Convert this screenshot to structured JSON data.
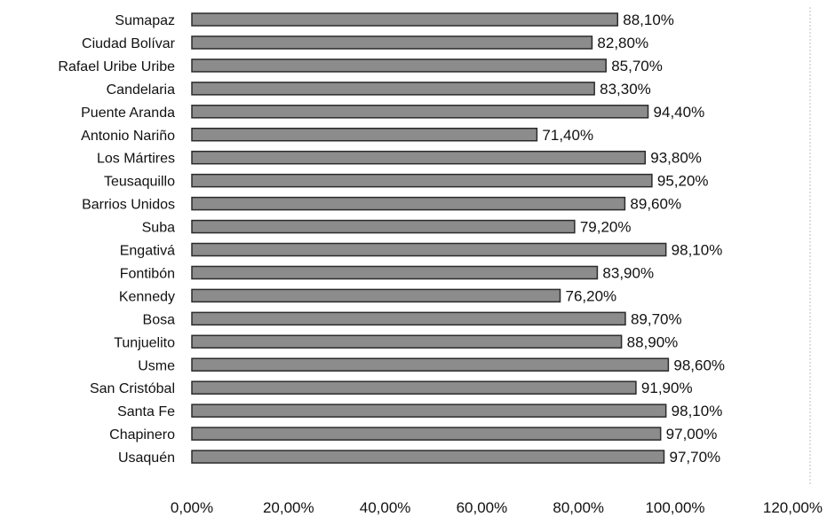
{
  "chart_data": {
    "type": "bar",
    "orientation": "horizontal",
    "categories": [
      "Sumapaz",
      "Ciudad Bolívar",
      "Rafael Uribe Uribe",
      "Candelaria",
      "Puente Aranda",
      "Antonio Nariño",
      "Los Mártires",
      "Teusaquillo",
      "Barrios Unidos",
      "Suba",
      "Engativá",
      "Fontibón",
      "Kennedy",
      "Bosa",
      "Tunjuelito",
      "Usme",
      "San Cristóbal",
      "Santa Fe",
      "Chapinero",
      "Usaquén"
    ],
    "values": [
      88.1,
      82.8,
      85.7,
      83.3,
      94.4,
      71.4,
      93.8,
      95.2,
      89.6,
      79.2,
      98.1,
      83.9,
      76.2,
      89.7,
      88.9,
      98.6,
      91.9,
      98.1,
      97.0,
      97.7
    ],
    "value_labels": [
      "88,10%",
      "82,80%",
      "85,70%",
      "83,30%",
      "94,40%",
      "71,40%",
      "93,80%",
      "95,20%",
      "89,60%",
      "79,20%",
      "98,10%",
      "83,90%",
      "76,20%",
      "89,70%",
      "88,90%",
      "98,60%",
      "91,90%",
      "98,10%",
      "97,00%",
      "97,70%"
    ],
    "x_ticks": [
      "0,00%",
      "20,00%",
      "40,00%",
      "60,00%",
      "80,00%",
      "100,00%",
      "120,00%"
    ],
    "xlim": [
      0,
      120
    ],
    "title": "",
    "xlabel": "",
    "ylabel": "",
    "grid": false,
    "legend": "none",
    "bar_color": "#8c8c8c"
  }
}
